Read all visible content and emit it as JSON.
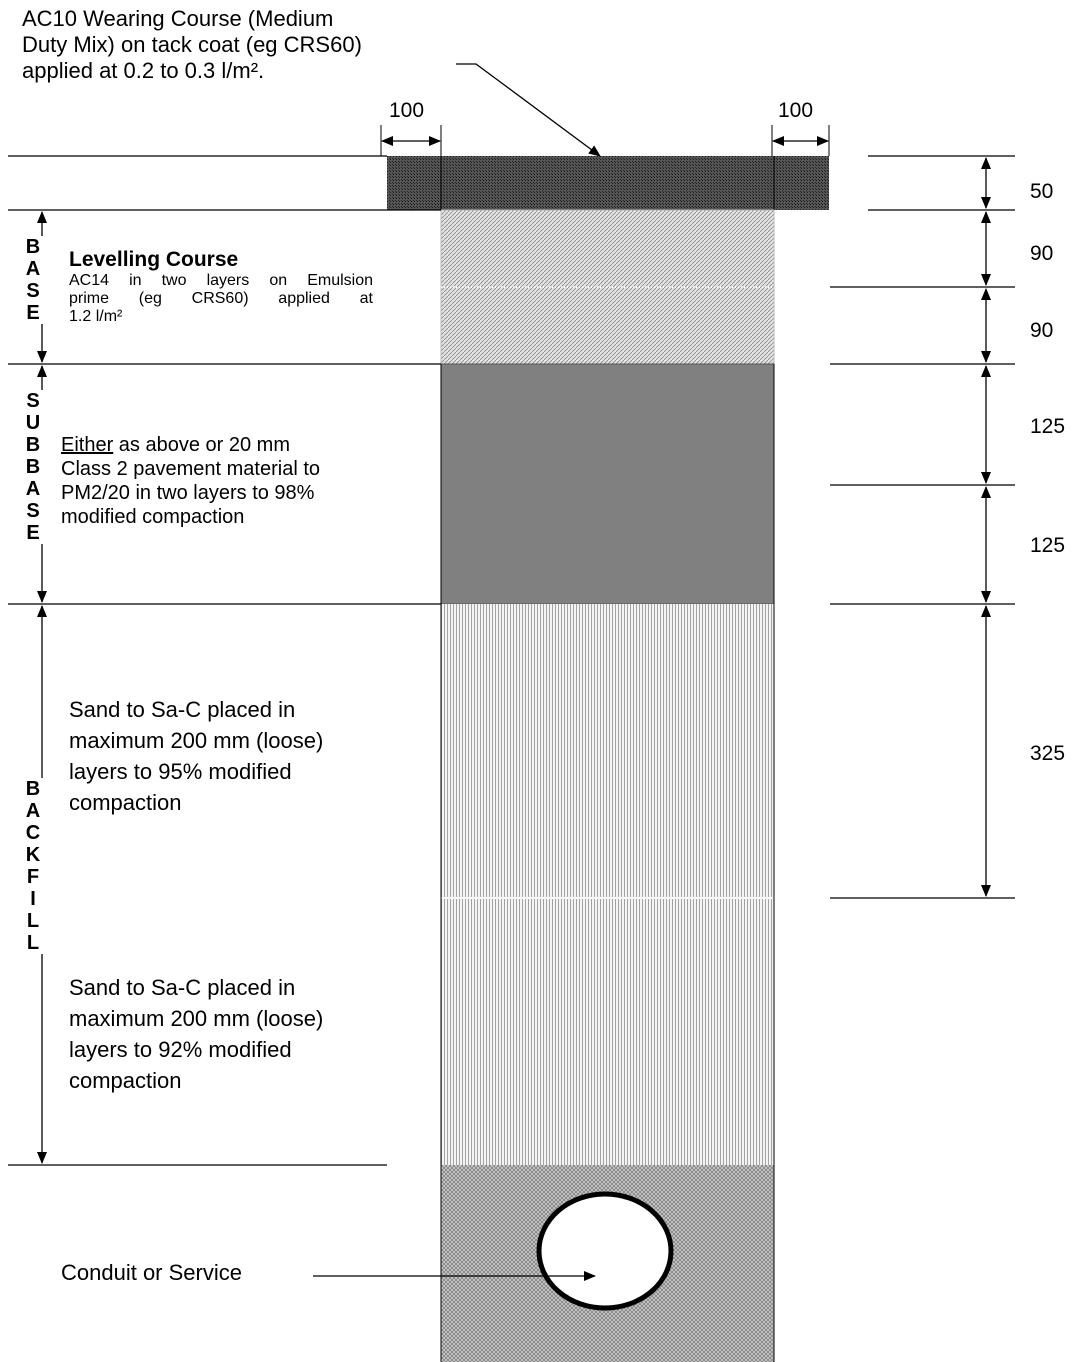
{
  "wearing_course": {
    "line1": "AC10 Wearing Course (Medium",
    "line2": "Duty Mix) on tack coat (eg CRS60)",
    "line3": "applied at 0.2 to 0.3 l/m²."
  },
  "overlap_left": "100",
  "overlap_right": "100",
  "thickness": {
    "wearing": "50",
    "levelling_1": "90",
    "levelling_2": "90",
    "subbase_1": "125",
    "subbase_2": "125",
    "backfill_1": "325"
  },
  "side_labels": {
    "base": "B\nA\nS\nE",
    "subbase": "S\nU\nB\nB\nA\nS\nE",
    "backfill": "B\nA\nC\nK\nF\nI\nL\nL"
  },
  "levelling": {
    "title": "Levelling Course",
    "line1": "AC14 in two layers on Emulsion",
    "line2": "prime (eg CRS60) applied at",
    "line3": "1.2 l/m²"
  },
  "subbase_note": {
    "either": "Either",
    "line1_rest": " as above or 20 mm",
    "line2": "Class 2 pavement material to",
    "line3": "PM2/20 in two layers to 98%",
    "line4": "modified compaction"
  },
  "backfill_upper": {
    "line1": "Sand to Sa-C placed in",
    "line2": "maximum 200 mm (loose)",
    "line3": "layers to 95% modified",
    "line4": "compaction"
  },
  "backfill_lower": {
    "line1": "Sand to Sa-C placed in",
    "line2": "maximum 200 mm (loose)",
    "line3": "layers to 92% modified",
    "line4": "compaction"
  },
  "conduit_label": "Conduit or Service",
  "colors": {
    "wearing": "#3a3a3a",
    "levelling": "#c8c8c8",
    "subbase": "#808080",
    "backfill": "#dcdcdc",
    "bedding": "#b4b4b4",
    "line": "#000000"
  }
}
